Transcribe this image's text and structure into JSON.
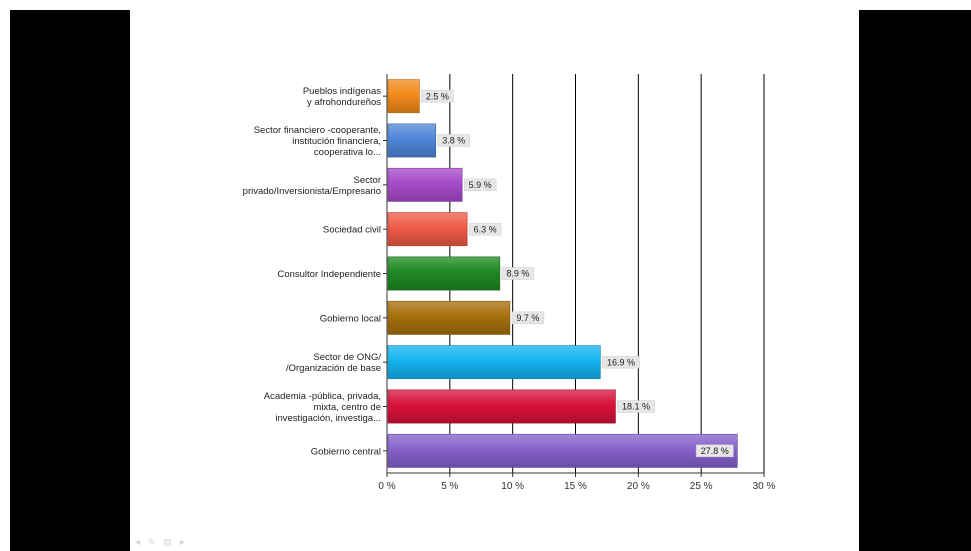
{
  "chart_data": {
    "type": "bar",
    "orientation": "horizontal",
    "categories": [
      [
        "Pueblos indígenas",
        "y afrohondureños"
      ],
      [
        "Sector financiero -cooperante,",
        "institución financiera,",
        "cooperativa lo..."
      ],
      [
        "Sector",
        "privado/Inversionista/Empresario"
      ],
      [
        "Sociedad civil"
      ],
      [
        "Consultor Independiente"
      ],
      [
        "Gobierno local"
      ],
      [
        "Sector de ONG/",
        "/Organización de base"
      ],
      [
        "Academia -pública,  privada,",
        "mixta, centro de",
        "investigación, investiga..."
      ],
      [
        "Gobierno central"
      ]
    ],
    "values": [
      2.5,
      3.8,
      5.9,
      6.3,
      8.9,
      9.7,
      16.9,
      18.1,
      27.8
    ],
    "value_labels": [
      "2.5 %",
      "3.8 %",
      "5.9 %",
      "6.3 %",
      "8.9 %",
      "9.7 %",
      "16.9 %",
      "18.1 %",
      "27.8 %"
    ],
    "colors": [
      "#f28a1a",
      "#4f86d8",
      "#a64bc9",
      "#ef5a45",
      "#1f8a21",
      "#a66f0d",
      "#14b4ef",
      "#d8123a",
      "#8661cc"
    ],
    "xlim": [
      0,
      30
    ],
    "xticks": [
      0,
      5,
      10,
      15,
      20,
      25,
      30
    ],
    "xtick_labels": [
      "0 %",
      "5 %",
      "10 %",
      "15 %",
      "20 %",
      "25 %",
      "30 %"
    ],
    "grid": "vertical",
    "title": "",
    "xlabel": "",
    "ylabel": ""
  },
  "nav": {
    "icons": [
      "prev-arrow-icon",
      "pen-icon",
      "menu-icon",
      "next-arrow-icon"
    ],
    "glyphs": [
      "◄",
      "✎",
      "▤",
      "►"
    ]
  }
}
